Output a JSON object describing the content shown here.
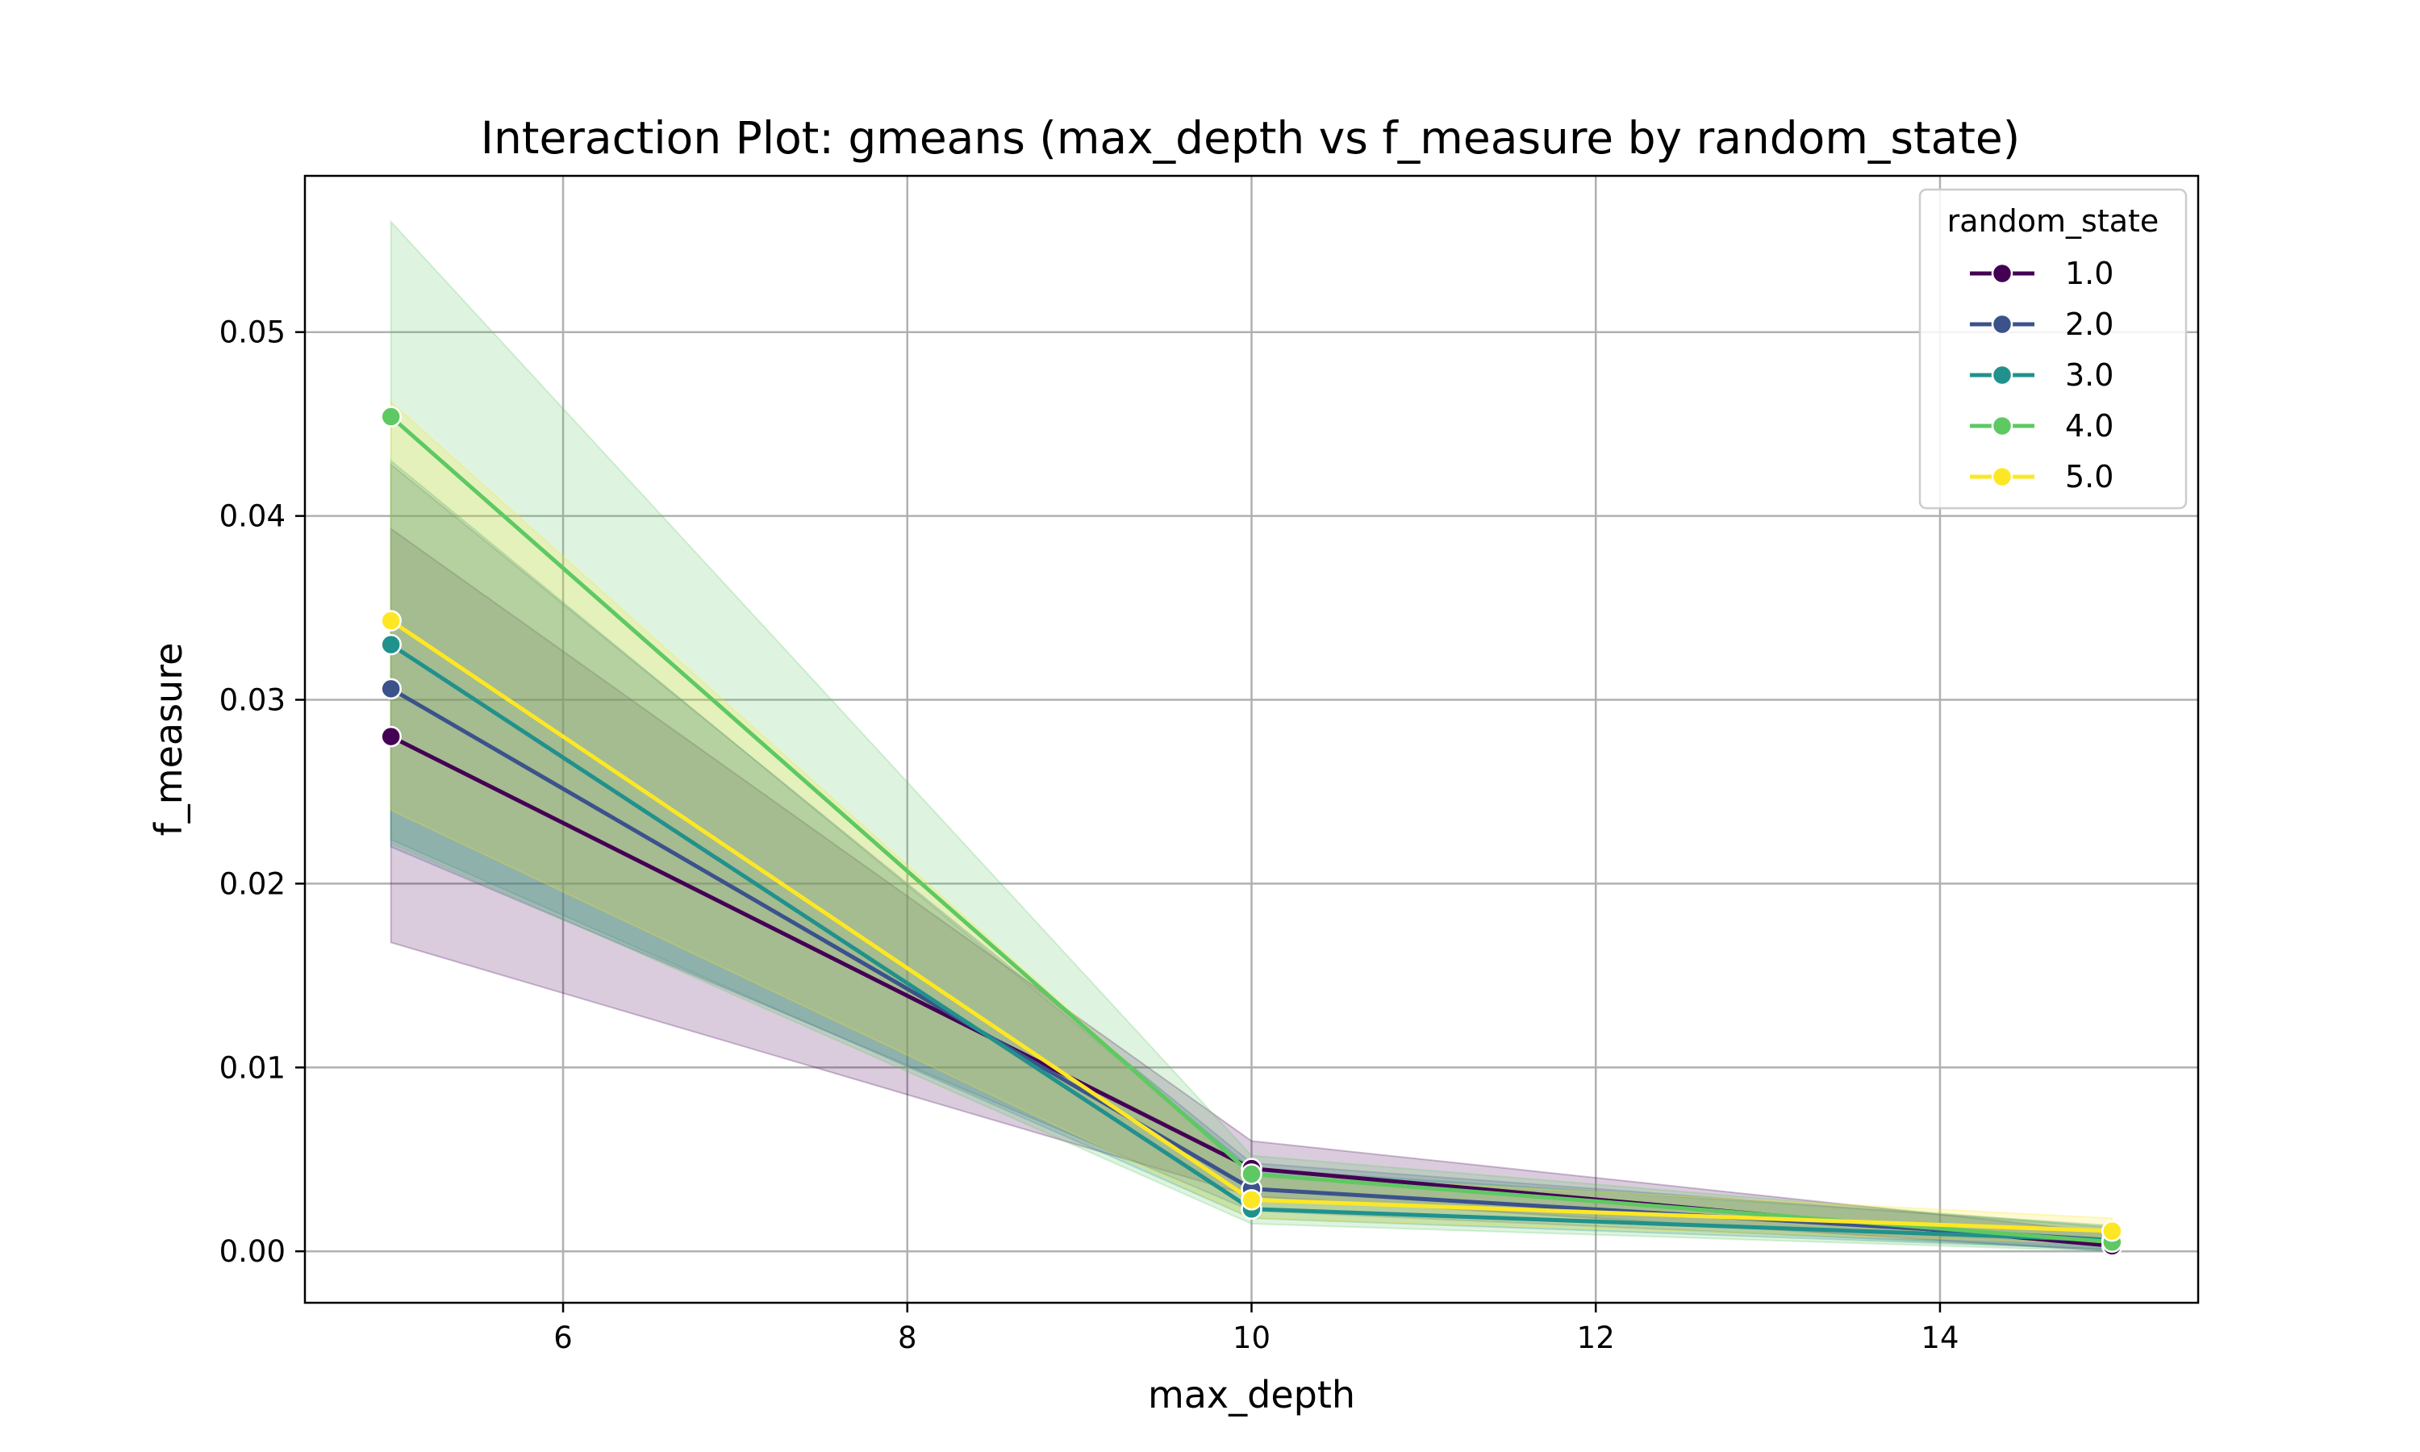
{
  "chart_data": {
    "type": "line",
    "title": "Interaction Plot: gmeans (max_depth vs f_measure by random_state)",
    "xlabel": "max_depth",
    "ylabel": "f_measure",
    "x": [
      5,
      10,
      15
    ],
    "xlim": [
      4.5,
      15.5
    ],
    "ylim": [
      -0.0028,
      0.0585
    ],
    "xticks": [
      6,
      8,
      10,
      12,
      14
    ],
    "yticks": [
      0.0,
      0.01,
      0.02,
      0.03,
      0.04,
      0.05
    ],
    "xtick_labels": [
      "6",
      "8",
      "10",
      "12",
      "14"
    ],
    "ytick_labels": [
      "0.00",
      "0.01",
      "0.02",
      "0.03",
      "0.04",
      "0.05"
    ],
    "grid": true,
    "legend": {
      "title": "random_state",
      "placement": "top-right"
    },
    "series": [
      {
        "name": "1.0",
        "color": "#440154",
        "values": [
          0.028,
          0.0045,
          0.0003
        ],
        "ci_low": [
          0.0168,
          0.003,
          0.0
        ],
        "ci_high": [
          0.0393,
          0.006,
          0.001
        ]
      },
      {
        "name": "2.0",
        "color": "#3b528b",
        "values": [
          0.0306,
          0.0034,
          0.0006
        ],
        "ci_low": [
          0.022,
          0.0022,
          0.0001
        ],
        "ci_high": [
          0.0428,
          0.0048,
          0.0013
        ]
      },
      {
        "name": "3.0",
        "color": "#21918c",
        "values": [
          0.033,
          0.0023,
          0.0006
        ],
        "ci_low": [
          0.0224,
          0.0018,
          0.0001
        ],
        "ci_high": [
          0.043,
          0.0045,
          0.0014
        ]
      },
      {
        "name": "4.0",
        "color": "#5ec962",
        "values": [
          0.0454,
          0.0042,
          0.0005
        ],
        "ci_low": [
          0.0222,
          0.0015,
          0.0
        ],
        "ci_high": [
          0.056,
          0.0052,
          0.0013
        ]
      },
      {
        "name": "5.0",
        "color": "#fde725",
        "values": [
          0.0343,
          0.0028,
          0.0011
        ],
        "ci_low": [
          0.024,
          0.0018,
          0.0004
        ],
        "ci_high": [
          0.0462,
          0.0042,
          0.0018
        ]
      }
    ]
  }
}
